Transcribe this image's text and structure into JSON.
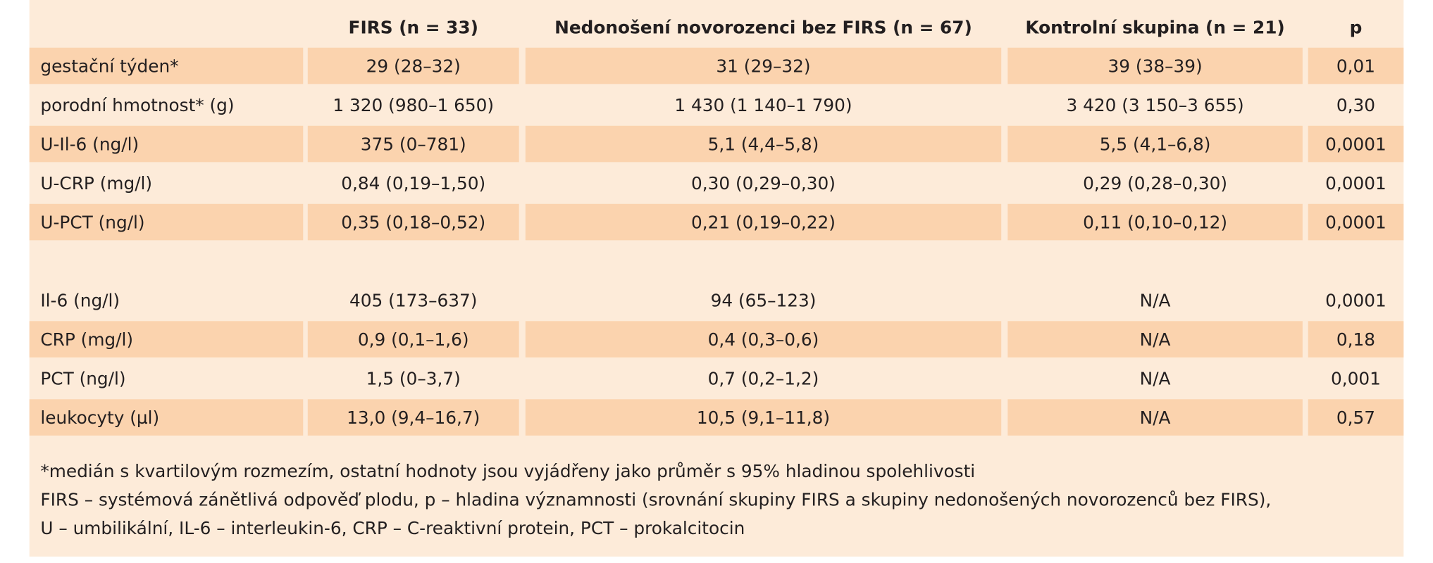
{
  "table": {
    "header": [
      "FIRS (n = 33)",
      "Nedonošení novorozenci bez FIRS (n = 67)",
      "Kontrolní skupina (n = 21)",
      "p"
    ],
    "groups": [
      [
        [
          "gestační týden*",
          "29 (28–32)",
          "31 (29–32)",
          "39 (38–39)",
          "0,01"
        ],
        [
          "porodní hmotnost* (g)",
          "1 320 (980–1 650)",
          "1 430 (1 140–1 790)",
          "3 420 (3 150–3 655)",
          "0,30"
        ],
        [
          "U-Il-6 (ng/l)",
          "375 (0–781)",
          "5,1 (4,4–5,8)",
          "5,5 (4,1–6,8)",
          "0,0001"
        ],
        [
          "U-CRP (mg/l)",
          "0,84 (0,19–1,50)",
          "0,30 (0,29–0,30)",
          "0,29 (0,28–0,30)",
          "0,0001"
        ],
        [
          "U-PCT (ng/l)",
          "0,35 (0,18–0,52)",
          "0,21 (0,19–0,22)",
          "0,11 (0,10–0,12)",
          "0,0001"
        ]
      ],
      [
        [
          "Il-6 (ng/l)",
          "405 (173–637)",
          "94 (65–123)",
          "N/A",
          "0,0001"
        ],
        [
          "CRP (mg/l)",
          "0,9 (0,1–1,6)",
          "0,4 (0,3–0,6)",
          "N/A",
          "0,18"
        ],
        [
          "PCT (ng/l)",
          "1,5 (0–3,7)",
          "0,7 (0,2–1,2)",
          "N/A",
          "0,001"
        ],
        [
          "leukocyty (µl)",
          "13,0 (9,4–16,7)",
          "10,5 (9,1–11,8)",
          "N/A",
          "0,57"
        ]
      ]
    ],
    "footnotes": [
      "*medián s kvartilovým rozmezím, ostatní hodnoty jsou vyjádřeny jako průměr s 95% hladinou spolehlivosti",
      "FIRS – systémová zánětlivá odpověď plodu, p – hladina významnosti (srovnání skupiny FIRS a skupiny nedonošených novorozenců bez FIRS),",
      "U – umbilikální, IL-6 – interleukin-6, CRP – C-reaktivní protein, PCT – prokalcitocin"
    ]
  }
}
